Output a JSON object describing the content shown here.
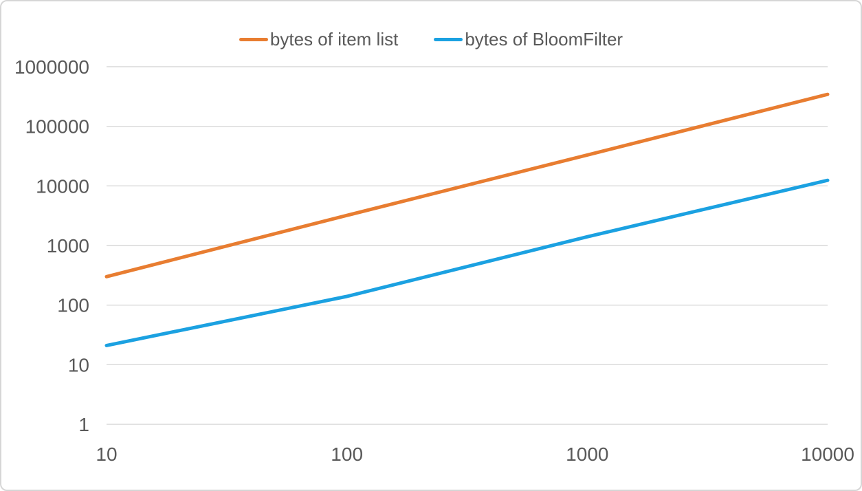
{
  "colors": {
    "series_item_list": "#E87D31",
    "series_bloom_filter": "#1BA1E1",
    "gridline": "#D9D9D9",
    "tick_label": "#595959",
    "legend_text": "#595959",
    "frame_border": "#D6D6D6",
    "background": "#FFFFFF"
  },
  "chart_data": {
    "type": "line",
    "x": [
      10,
      100,
      1000,
      10000
    ],
    "series": [
      {
        "name": "bytes of item list",
        "color": "#E87D31",
        "values": [
          300,
          3200,
          33000,
          344000
        ]
      },
      {
        "name": "bytes of BloomFilter",
        "color": "#1BA1E1",
        "values": [
          21,
          140,
          1400,
          12400
        ]
      }
    ],
    "title": "",
    "xlabel": "",
    "ylabel": "",
    "x_scale": "log",
    "y_scale": "log",
    "xlim": [
      10,
      10000
    ],
    "ylim": [
      1,
      1000000
    ],
    "x_ticks": [
      10,
      100,
      1000,
      10000
    ],
    "y_ticks": [
      1,
      10,
      100,
      1000,
      10000,
      100000,
      1000000
    ],
    "grid": "horizontal",
    "legend_position": "top-center"
  }
}
